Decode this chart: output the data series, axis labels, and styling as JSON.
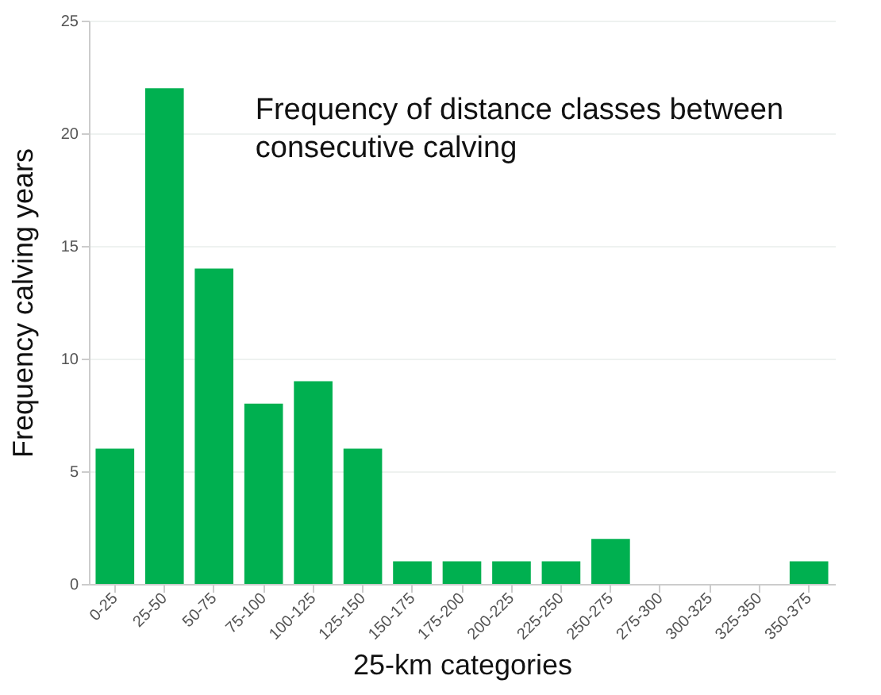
{
  "chart_data": {
    "type": "bar",
    "title": "Frequency of distance classes between consecutive calving",
    "xlabel": "25-km categories",
    "ylabel": "Frequency calving years",
    "categories": [
      "0-25",
      "25-50",
      "50-75",
      "75-100",
      "100-125",
      "125-150",
      "150-175",
      "175-200",
      "200-225",
      "225-250",
      "250-275",
      "275-300",
      "300-325",
      "325-350",
      "350-375"
    ],
    "values": [
      6,
      22,
      14,
      8,
      9,
      6,
      1,
      1,
      1,
      1,
      2,
      0,
      0,
      0,
      1
    ],
    "color": "#00b050",
    "ylim": [
      0,
      25
    ],
    "yticks": [
      0,
      5,
      10,
      15,
      20,
      25
    ],
    "grid": "y"
  }
}
